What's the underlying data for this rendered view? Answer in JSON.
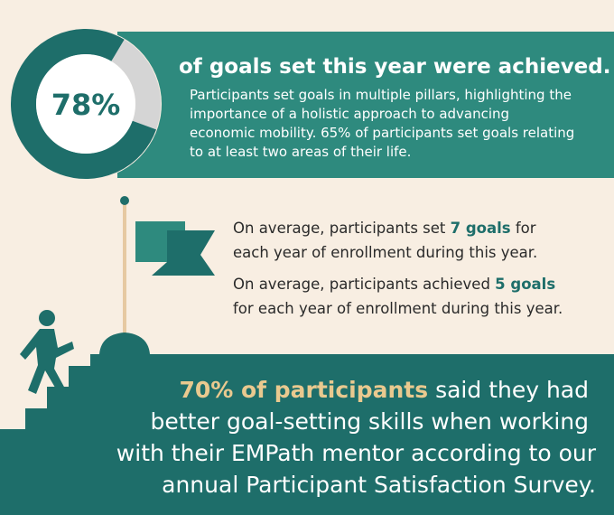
{
  "stat": {
    "value": 78,
    "label": "78%"
  },
  "headline": "of goals set this year were achieved.",
  "paragraph": [
    "Participants set goals in multiple pillars, highlighting the",
    "importance of a holistic approach to advancing",
    "economic mobility. 65% of participants set goals relating",
    "to at least two areas of their life."
  ],
  "facts": [
    {
      "before": "On average, participants set ",
      "highlight": "7 goals",
      "after": " for",
      "line2": "each year of enrollment during this year."
    },
    {
      "before": "On average, participants achieved ",
      "highlight": "5 goals",
      "after": "",
      "line2": "for each year of enrollment during this year."
    }
  ],
  "survey": {
    "highlight": "70% of participants",
    "after": " said they had",
    "lines": [
      "better goal-setting skills when working",
      "with their EMPath mentor according to our",
      "annual Participant Satisfaction Survey."
    ]
  }
}
